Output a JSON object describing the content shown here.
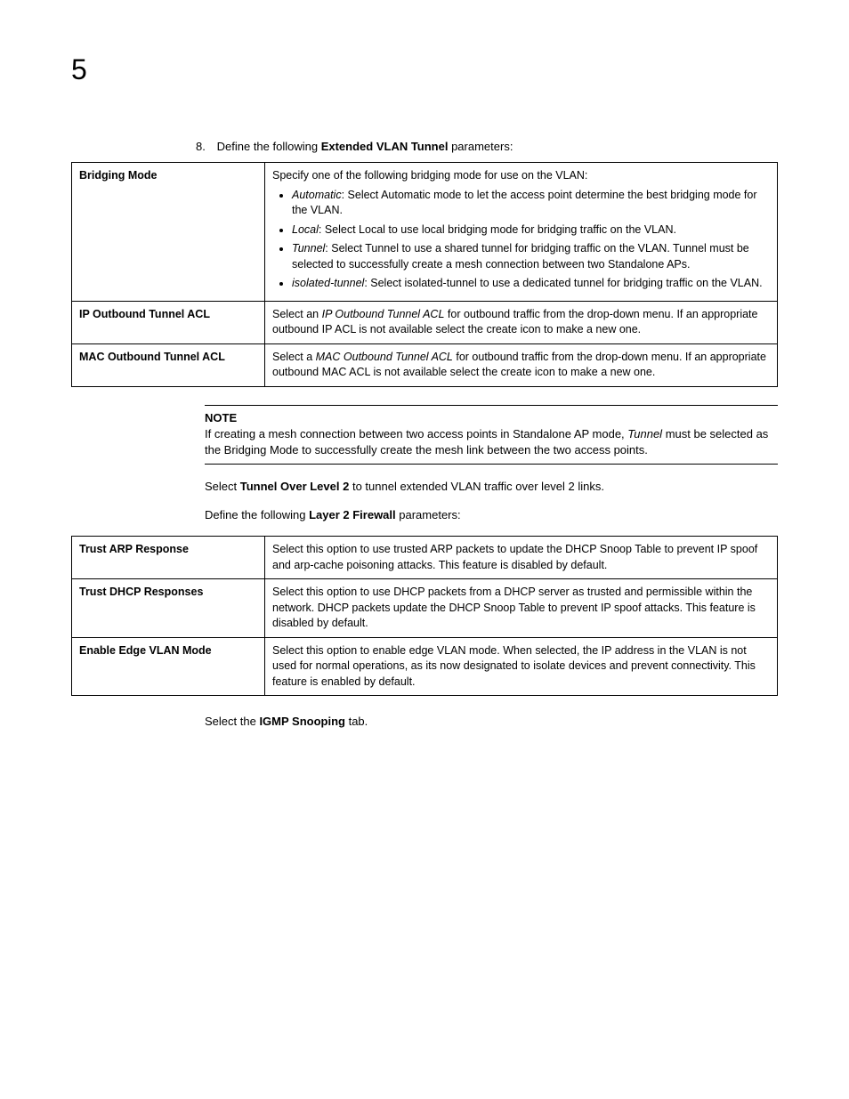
{
  "chapter_number": "5",
  "step8": {
    "number": "8.",
    "prefix": "Define the following ",
    "bold": "Extended VLAN Tunnel",
    "suffix": " parameters:"
  },
  "table1": {
    "rows": [
      {
        "label": "Bridging Mode",
        "intro": "Specify one of the following bridging mode for use on the VLAN:",
        "bullets": [
          {
            "em": "Automatic",
            "text": ": Select Automatic mode to let the access point determine the best bridging mode for the VLAN."
          },
          {
            "em": "Local",
            "text": ": Select Local to use local bridging mode for bridging traffic on the VLAN."
          },
          {
            "em": "Tunnel",
            "text": ": Select Tunnel to use a shared tunnel for bridging traffic on the VLAN. Tunnel must be selected to successfully create a mesh connection between two Standalone APs."
          },
          {
            "em": "isolated-tunnel",
            "text": ": Select isolated-tunnel to use a dedicated tunnel for bridging traffic on the VLAN."
          }
        ]
      },
      {
        "label": "IP Outbound Tunnel ACL",
        "pre": "Select an ",
        "em": "IP Outbound Tunnel ACL",
        "post": " for outbound traffic from the drop-down menu. If an appropriate outbound IP ACL is not available select the create icon to make a new one."
      },
      {
        "label": "MAC Outbound Tunnel ACL",
        "pre": "Select a ",
        "em": "MAC Outbound Tunnel ACL",
        "post": " for outbound traffic from the drop-down menu. If an appropriate outbound MAC ACL is not available select the create icon to make a new one."
      }
    ]
  },
  "note": {
    "title": "NOTE",
    "pre": "If creating a mesh connection between two access points in Standalone AP mode, ",
    "em": "Tunnel",
    "post": " must be selected as the Bridging Mode to successfully create the mesh link between the two access points."
  },
  "para1": {
    "pre": "Select ",
    "bold": "Tunnel Over Level 2",
    "post": " to tunnel extended VLAN traffic over level 2 links."
  },
  "para2": {
    "pre": "Define the following ",
    "bold": "Layer 2 Firewall",
    "post": " parameters:"
  },
  "table2": {
    "rows": [
      {
        "label": "Trust ARP Response",
        "desc": "Select this option to use trusted ARP packets to update the DHCP Snoop Table to prevent IP spoof and arp-cache poisoning attacks. This feature is disabled by default."
      },
      {
        "label": "Trust DHCP Responses",
        "desc": "Select this option to use DHCP packets from a DHCP server as trusted and permissible within the network. DHCP packets update the DHCP Snoop Table to prevent IP spoof attacks. This feature is disabled by default."
      },
      {
        "label": "Enable Edge VLAN Mode",
        "desc": "Select this option to enable edge VLAN mode. When selected, the IP address in the VLAN is not used for normal operations, as its now designated to isolate devices and prevent connectivity. This feature is enabled by default."
      }
    ]
  },
  "para3": {
    "pre": "Select the ",
    "bold": "IGMP Snooping",
    "post": " tab."
  }
}
